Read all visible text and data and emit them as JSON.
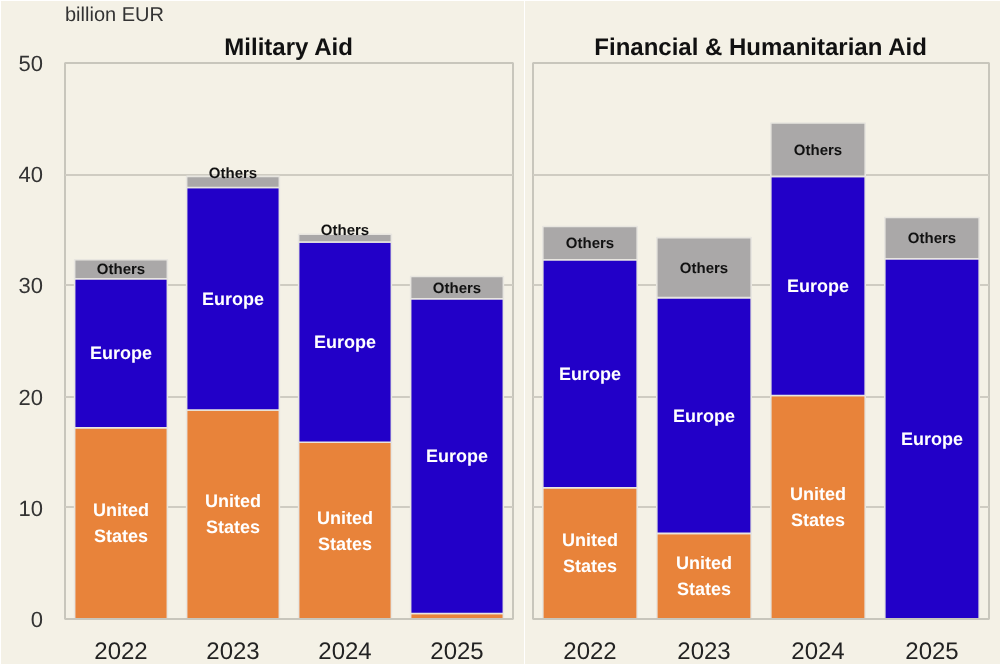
{
  "chart_data": [
    {
      "type": "bar",
      "title": "Military Aid",
      "ylabel": "billion EUR",
      "stacked": true,
      "grid": "y",
      "legend": false,
      "categories": [
        "2022",
        "2023",
        "2024",
        "2025"
      ],
      "ylim": [
        0,
        50
      ],
      "yticks": [
        0,
        10,
        20,
        30,
        40,
        50
      ],
      "series": [
        {
          "name": "United States",
          "color": "#e8833a",
          "values": [
            17.2,
            18.8,
            15.9,
            0.5
          ]
        },
        {
          "name": "Europe",
          "color": "#2200c8",
          "values": [
            13.4,
            20.0,
            18.0,
            28.3
          ]
        },
        {
          "name": "Others",
          "color": "#aaa8a8",
          "values": [
            1.7,
            1.0,
            0.7,
            2.0
          ]
        }
      ]
    },
    {
      "type": "bar",
      "title": "Financial & Humanitarian Aid",
      "stacked": true,
      "grid": "y",
      "legend": false,
      "tick_labels": "x",
      "categories": [
        "2022",
        "2023",
        "2024",
        "2025"
      ],
      "ylim": [
        0,
        50
      ],
      "yticks": [
        0,
        10,
        20,
        30,
        40,
        50
      ],
      "series": [
        {
          "name": "United States",
          "color": "#e8833a",
          "values": [
            11.8,
            7.7,
            20.1,
            0
          ]
        },
        {
          "name": "Europe",
          "color": "#2200c8",
          "values": [
            20.5,
            21.2,
            19.7,
            32.4
          ]
        },
        {
          "name": "Others",
          "color": "#aaa8a8",
          "values": [
            3.0,
            5.4,
            4.8,
            3.7
          ]
        }
      ]
    }
  ]
}
